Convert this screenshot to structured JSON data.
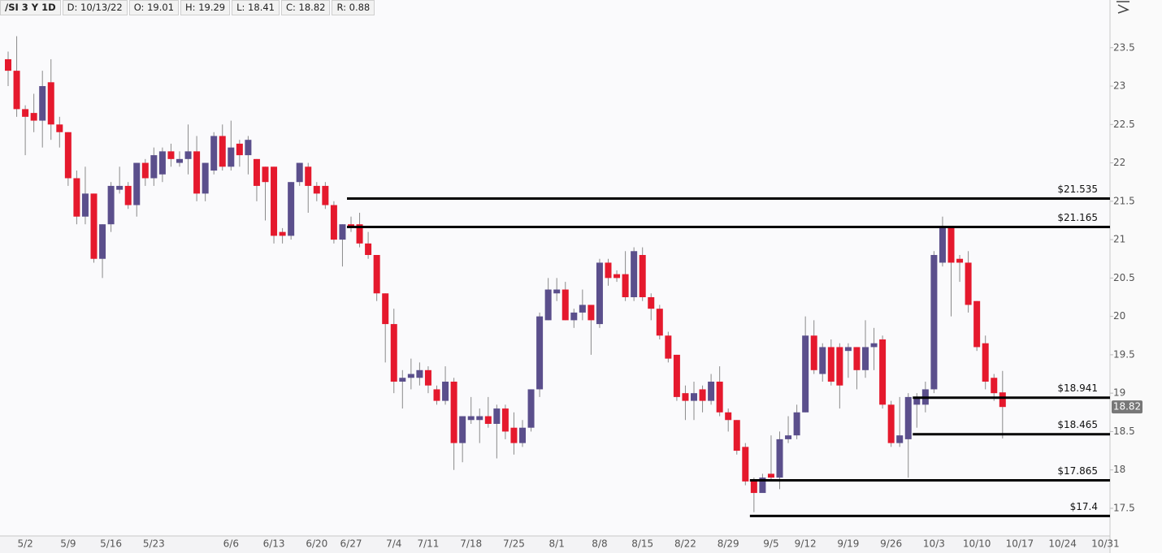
{
  "header": [
    "/SI 3 Y 1D",
    "D: 10/13/22",
    "O: 19.01",
    "H: 19.29",
    "L: 18.41",
    "C: 18.82",
    "R: 0.88"
  ],
  "chart_data": {
    "type": "candlestick",
    "categories": [
      null,
      null,
      "5/2",
      null,
      null,
      null,
      null,
      "5/9",
      null,
      null,
      null,
      null,
      "5/16",
      null,
      null,
      null,
      null,
      "5/23",
      null,
      null,
      null,
      null,
      null,
      null,
      null,
      null,
      "6/6",
      null,
      null,
      null,
      null,
      "6/13",
      null,
      null,
      null,
      null,
      "6/20",
      null,
      null,
      null,
      "6/27",
      null,
      null,
      null,
      null,
      "7/4",
      null,
      null,
      null,
      "7/11",
      null,
      null,
      null,
      null,
      "7/18",
      null,
      null,
      null,
      null,
      "7/25",
      null,
      null,
      null,
      null,
      "8/1",
      null,
      null,
      null,
      null,
      "8/8",
      null,
      null,
      null,
      null,
      "8/15",
      null,
      null,
      null,
      null,
      "8/22",
      null,
      null,
      null,
      null,
      "8/29",
      null,
      null,
      null,
      null,
      "9/5",
      null,
      null,
      null,
      "9/12",
      null,
      null,
      null,
      null,
      "9/19",
      null,
      null,
      null,
      null,
      "9/26",
      null,
      null,
      null,
      null,
      "10/3",
      null,
      null,
      null,
      null,
      "10/10",
      null,
      null,
      null,
      null,
      "10/17",
      null,
      null,
      null,
      null,
      "10/24",
      null,
      null,
      null,
      null,
      "10/31"
    ],
    "open": [
      23.35,
      23.2,
      22.7,
      22.65,
      22.55,
      23.05,
      22.5,
      22.4,
      21.8,
      21.3,
      21.6,
      20.75,
      21.2,
      21.65,
      21.7,
      21.45,
      22.0,
      21.8,
      21.85,
      22.15,
      22.0,
      22.05,
      22.15,
      21.6,
      21.9,
      22.35,
      21.95,
      22.25,
      22.1,
      22.05,
      21.95,
      21.95,
      21.1,
      21.05,
      21.75,
      21.95,
      21.7,
      21.7,
      21.45,
      21.0,
      21.2,
      21.2,
      20.95,
      20.8,
      20.3,
      19.9,
      19.15,
      19.2,
      19.2,
      19.3,
      19.05,
      18.9,
      19.15,
      18.35,
      18.65,
      18.65,
      18.7,
      18.6,
      18.8,
      18.55,
      18.35,
      18.55,
      19.05,
      19.95,
      20.3,
      20.35,
      19.95,
      20.05,
      20.15,
      19.9,
      20.7,
      20.55,
      20.55,
      20.25,
      20.8,
      20.25,
      20.1,
      19.75,
      19.5,
      19.0,
      18.9,
      19.05,
      18.9,
      19.15,
      18.75,
      18.65,
      18.3,
      17.85,
      17.7,
      17.95,
      17.9,
      18.4,
      18.45,
      18.75,
      19.75,
      19.25,
      19.6,
      19.6,
      19.55,
      19.6,
      19.3,
      19.6,
      19.7,
      18.85,
      18.35,
      18.4,
      18.85,
      18.85,
      19.05,
      20.7,
      21.15,
      20.75,
      20.7,
      20.2,
      19.65,
      19.2,
      19.01,
      null,
      null,
      null,
      null,
      null,
      null,
      null,
      null,
      null,
      null,
      null,
      null
    ],
    "high": [
      23.45,
      23.65,
      22.75,
      22.9,
      23.2,
      23.35,
      22.6,
      22.4,
      21.9,
      21.95,
      21.6,
      21.2,
      21.75,
      21.95,
      21.75,
      22.0,
      22.05,
      22.2,
      22.2,
      22.25,
      22.15,
      22.5,
      22.35,
      22.0,
      22.4,
      22.5,
      22.55,
      22.3,
      22.35,
      22.05,
      21.95,
      21.95,
      21.15,
      21.75,
      22.0,
      22.0,
      21.75,
      21.75,
      21.5,
      21.2,
      21.3,
      21.35,
      21.1,
      20.8,
      20.3,
      20.1,
      19.3,
      19.45,
      19.4,
      19.35,
      19.1,
      19.35,
      19.2,
      18.7,
      18.95,
      18.8,
      18.95,
      18.85,
      18.85,
      18.75,
      18.65,
      19.05,
      20.05,
      20.5,
      20.5,
      20.45,
      20.1,
      20.35,
      20.15,
      20.75,
      20.75,
      20.6,
      20.85,
      20.9,
      20.9,
      20.3,
      20.15,
      19.8,
      19.5,
      19.1,
      19.15,
      19.1,
      19.25,
      19.35,
      18.8,
      18.65,
      18.35,
      17.9,
      17.95,
      18.45,
      18.5,
      18.7,
      18.85,
      20.0,
      19.95,
      19.65,
      19.7,
      19.65,
      19.65,
      19.6,
      19.95,
      19.85,
      19.75,
      18.9,
      18.95,
      19.0,
      19.0,
      19.15,
      20.85,
      21.3,
      21.15,
      20.8,
      20.85,
      20.2,
      19.75,
      19.25,
      19.29,
      null,
      null,
      null,
      null,
      null,
      null,
      null,
      null,
      null,
      null,
      null,
      null
    ],
    "low": [
      23.0,
      22.6,
      22.1,
      22.4,
      22.2,
      22.3,
      22.2,
      21.7,
      21.2,
      21.2,
      20.7,
      20.5,
      21.1,
      21.6,
      21.4,
      21.3,
      21.7,
      21.7,
      21.75,
      21.95,
      21.95,
      21.85,
      21.5,
      21.5,
      21.85,
      21.9,
      21.9,
      21.95,
      21.85,
      21.5,
      21.25,
      20.95,
      20.95,
      21.0,
      21.7,
      21.35,
      21.5,
      21.4,
      20.95,
      20.65,
      21.1,
      20.9,
      20.75,
      20.2,
      19.4,
      19.0,
      18.8,
      19.05,
      19.1,
      19.0,
      18.85,
      18.85,
      18.0,
      18.1,
      18.6,
      18.35,
      18.55,
      18.15,
      18.4,
      18.2,
      18.3,
      18.5,
      18.95,
      19.95,
      20.2,
      19.95,
      19.85,
      19.95,
      19.5,
      19.85,
      20.4,
      20.45,
      20.2,
      20.2,
      20.2,
      19.95,
      19.7,
      19.4,
      18.9,
      18.65,
      18.65,
      18.75,
      18.85,
      18.7,
      18.5,
      18.2,
      17.8,
      17.45,
      17.75,
      17.85,
      17.75,
      18.35,
      18.4,
      18.75,
      19.25,
      19.15,
      19.1,
      18.8,
      19.2,
      19.05,
      19.2,
      19.3,
      18.8,
      18.3,
      18.3,
      17.9,
      18.55,
      18.75,
      19.0,
      20.65,
      20.0,
      20.45,
      20.05,
      19.55,
      19.05,
      18.9,
      18.41,
      null,
      null,
      null,
      null,
      null,
      null,
      null,
      null,
      null,
      null,
      null,
      null
    ],
    "close": [
      23.2,
      22.7,
      22.6,
      22.55,
      23.0,
      22.5,
      22.4,
      21.8,
      21.3,
      21.6,
      20.75,
      21.2,
      21.7,
      21.7,
      21.45,
      22.0,
      21.8,
      22.1,
      22.15,
      22.05,
      22.05,
      22.15,
      21.6,
      22.0,
      22.35,
      21.95,
      22.2,
      22.1,
      22.3,
      21.7,
      21.75,
      21.05,
      21.05,
      21.75,
      22.0,
      21.7,
      21.6,
      21.45,
      21.0,
      21.2,
      21.15,
      20.95,
      20.8,
      20.3,
      19.9,
      19.15,
      19.2,
      19.25,
      19.3,
      19.1,
      18.9,
      19.15,
      18.35,
      18.7,
      18.7,
      18.7,
      18.6,
      18.8,
      18.5,
      18.35,
      18.55,
      19.05,
      20.0,
      20.35,
      20.35,
      19.95,
      20.05,
      20.15,
      19.95,
      20.7,
      20.5,
      20.5,
      20.25,
      20.85,
      20.25,
      20.1,
      19.75,
      19.45,
      18.95,
      18.9,
      19.0,
      18.9,
      19.15,
      18.75,
      18.65,
      18.25,
      17.85,
      17.7,
      17.9,
      17.9,
      18.4,
      18.45,
      18.75,
      19.75,
      19.3,
      19.6,
      19.15,
      19.1,
      19.6,
      19.3,
      19.6,
      19.65,
      18.85,
      18.35,
      18.45,
      18.95,
      18.95,
      19.05,
      20.8,
      21.15,
      20.7,
      20.7,
      20.15,
      19.6,
      19.15,
      19.0,
      18.82,
      null,
      null,
      null,
      null,
      null,
      null,
      null,
      null,
      null,
      null,
      null,
      null
    ],
    "up_color": "#5b4f8c",
    "down_color": "#e5192d",
    "ylim": [
      17.14,
      23.91
    ],
    "yticks": [
      17.5,
      18,
      18.5,
      19,
      19.5,
      20,
      20.5,
      21,
      21.5,
      22,
      22.5,
      23,
      23.5
    ],
    "grid": false,
    "levels": [
      {
        "value": 21.535,
        "label": "$21.535",
        "from": 40
      },
      {
        "value": 21.165,
        "label": "$21.165",
        "from": 40
      },
      {
        "value": 18.941,
        "label": "$18.941",
        "from": 106
      },
      {
        "value": 18.465,
        "label": "$18.465",
        "from": 106
      },
      {
        "value": 17.865,
        "label": "$17.865",
        "from": 87
      },
      {
        "value": 17.4,
        "label": "$17.4",
        "from": 87
      }
    ]
  }
}
